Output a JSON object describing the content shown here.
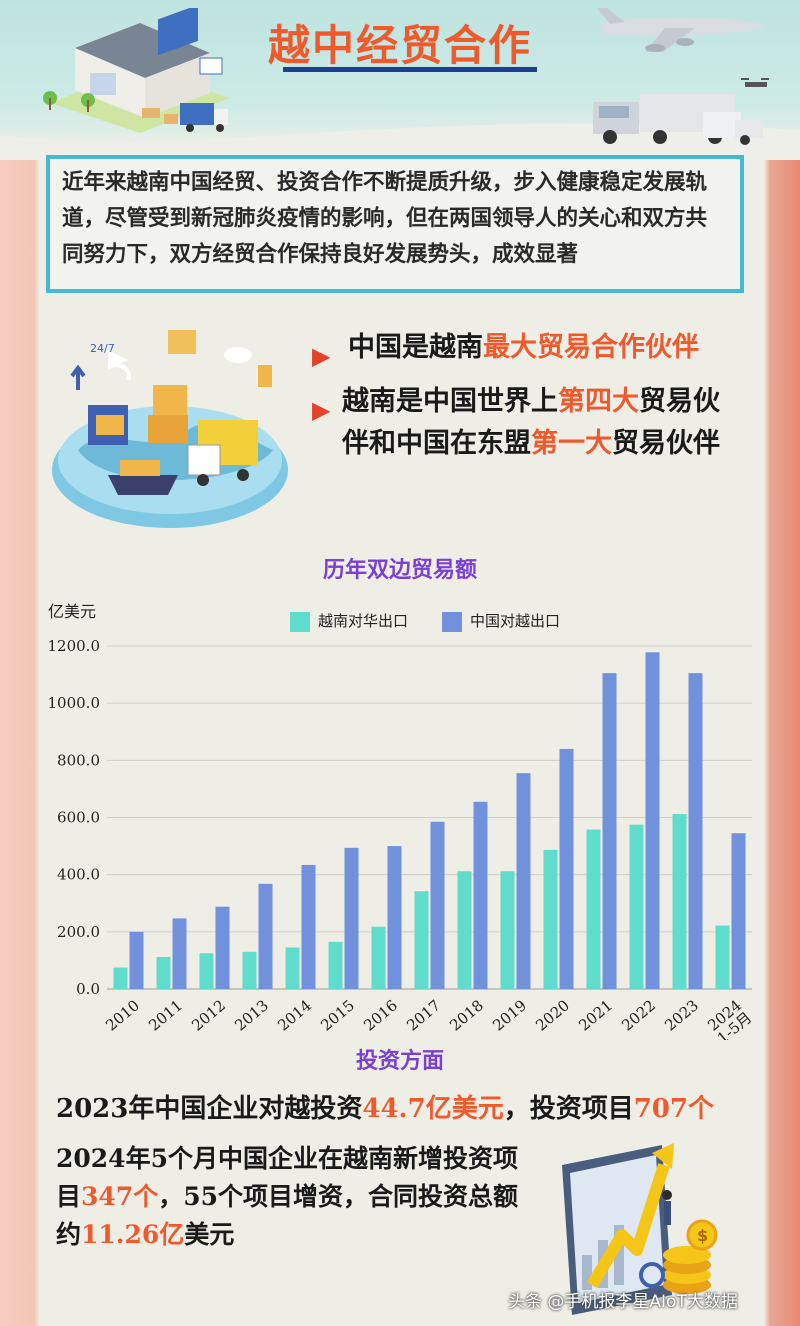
{
  "header": {
    "title": "越中经贸合作"
  },
  "intro": {
    "text": "近年来越南中国经贸、投资合作不断提质升级，步入健康稳定发展轨道，尽管受到新冠肺炎疫情的影响，但在两国领导人的关心和双方共同努力下，双方经贸合作保持良好发展势头，成效显著"
  },
  "highlights": {
    "b1_a": "中国是越南",
    "b1_hl": "最大贸易合作伙伴",
    "b2_a": "越南是中国世界上",
    "b2_hl1": "第四大",
    "b2_b": "贸易伙伴和中国在东盟",
    "b2_hl2": "第一大",
    "b2_c": "贸易伙伴"
  },
  "colors": {
    "accent": "#ef5a2c",
    "vn_series": "#5fdccb",
    "cn_series": "#7191dc",
    "section_title": "#7a3fd3"
  },
  "chart_data": {
    "type": "bar",
    "title": "历年双边贸易额",
    "ylabel": "亿美元",
    "ylim": [
      0,
      1200
    ],
    "yticks": [
      "0.0",
      "200.0",
      "400.0",
      "600.0",
      "800.0",
      "1000.0",
      "1200.0"
    ],
    "grid": true,
    "legend_position": "top",
    "categories": [
      "2010",
      "2011",
      "2012",
      "2013",
      "2014",
      "2015",
      "2016",
      "2017",
      "2018",
      "2019",
      "2020",
      "2021",
      "2022",
      "2023",
      "2024 1-5月"
    ],
    "series": [
      {
        "name": "越南对华出口",
        "values": [
          75,
          112,
          125,
          130,
          145,
          165,
          218,
          342,
          412,
          412,
          487,
          558,
          575,
          612,
          222
        ]
      },
      {
        "name": "中国对越出口",
        "values": [
          200,
          247,
          288,
          368,
          434,
          494,
          500,
          585,
          655,
          755,
          840,
          1105,
          1178,
          1105,
          545
        ]
      }
    ]
  },
  "investment": {
    "section_title": "投资方面",
    "line1_a": "2023年中国企业对越投资",
    "line1_hl1": "44.7亿美元",
    "line1_b": "，投资项目",
    "line1_hl2": "707个",
    "line2_a": "2024年5个月中国企业在越南新增投资项目",
    "line2_hl1": "347个",
    "line2_b": "，55个项目增资，合同投资总额约",
    "line2_hl2": "11.26亿",
    "line2_c": "美元"
  },
  "watermark": "头条 @手机报李星AIoT大数据"
}
